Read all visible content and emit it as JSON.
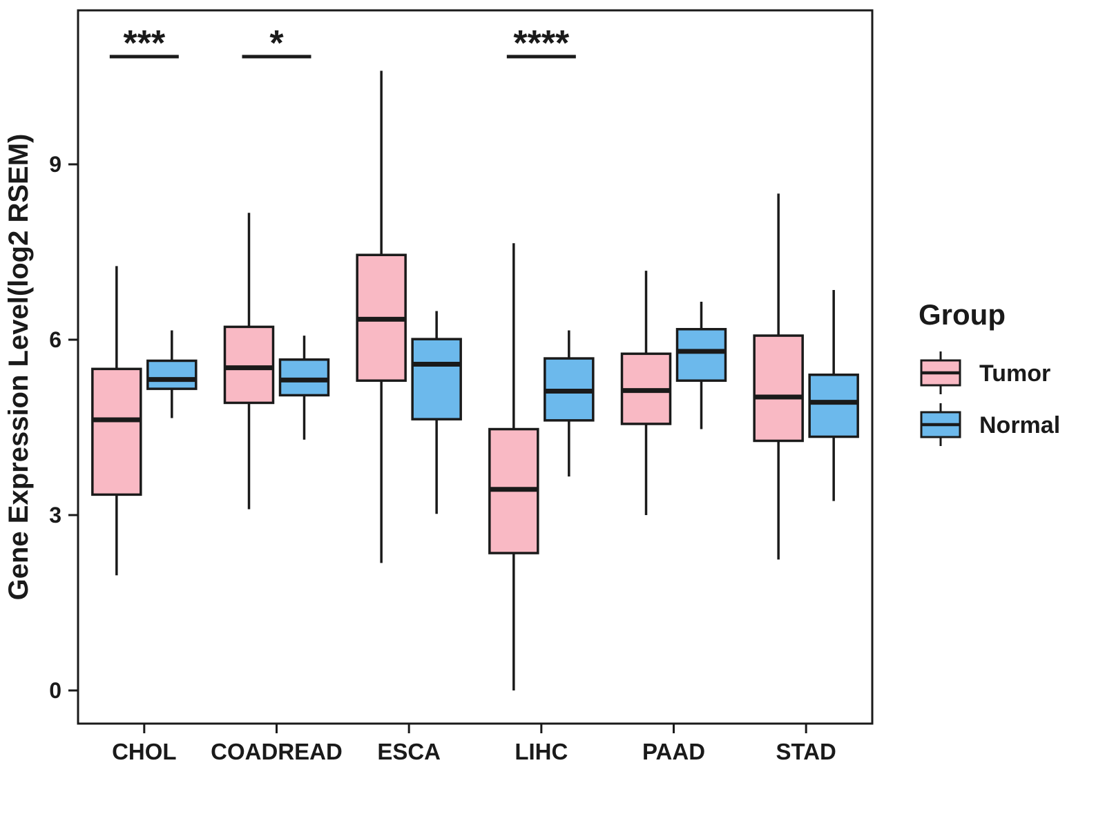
{
  "chart_data": {
    "type": "boxplot",
    "title": "",
    "xlabel": "",
    "ylabel": "Gene Expression Level(log2 RSEM)",
    "ylim": [
      -0.6,
      11.6
    ],
    "yticks": [
      0,
      3,
      6,
      9
    ],
    "grid": false,
    "legend_position": "right",
    "categories": [
      "CHOL",
      "COADREAD",
      "ESCA",
      "LIHC",
      "PAAD",
      "STAD"
    ],
    "series": [
      {
        "name": "Tumor",
        "color": "#F9B9C4",
        "boxes": [
          {
            "lo": 1.97,
            "q1": 3.35,
            "med": 4.63,
            "q3": 5.5,
            "hi": 7.26
          },
          {
            "lo": 3.1,
            "q1": 4.92,
            "med": 5.52,
            "q3": 6.22,
            "hi": 8.17
          },
          {
            "lo": 2.18,
            "q1": 5.3,
            "med": 6.35,
            "q3": 7.45,
            "hi": 10.6
          },
          {
            "lo": 0.0,
            "q1": 2.35,
            "med": 3.44,
            "q3": 4.47,
            "hi": 7.65
          },
          {
            "lo": 3.0,
            "q1": 4.56,
            "med": 5.13,
            "q3": 5.76,
            "hi": 7.18
          },
          {
            "lo": 2.24,
            "q1": 4.27,
            "med": 5.02,
            "q3": 6.07,
            "hi": 8.5
          }
        ]
      },
      {
        "name": "Normal",
        "color": "#6CB9EC",
        "boxes": [
          {
            "lo": 4.66,
            "q1": 5.16,
            "med": 5.32,
            "q3": 5.64,
            "hi": 6.16
          },
          {
            "lo": 4.29,
            "q1": 5.05,
            "med": 5.31,
            "q3": 5.66,
            "hi": 6.07
          },
          {
            "lo": 3.02,
            "q1": 4.64,
            "med": 5.58,
            "q3": 6.01,
            "hi": 6.49
          },
          {
            "lo": 3.66,
            "q1": 4.62,
            "med": 5.12,
            "q3": 5.68,
            "hi": 6.16
          },
          {
            "lo": 4.47,
            "q1": 5.3,
            "med": 5.8,
            "q3": 6.18,
            "hi": 6.65
          },
          {
            "lo": 3.24,
            "q1": 4.34,
            "med": 4.93,
            "q3": 5.4,
            "hi": 6.85
          }
        ]
      }
    ],
    "significance": [
      {
        "category": "CHOL",
        "label": "***"
      },
      {
        "category": "COADREAD",
        "label": "*"
      },
      {
        "category": "LIHC",
        "label": "****"
      }
    ],
    "legend": {
      "title": "Group",
      "entries": [
        {
          "label": "Tumor",
          "color": "#F9B9C4"
        },
        {
          "label": "Normal",
          "color": "#6CB9EC"
        }
      ]
    },
    "style": {
      "box_border_color": "#1a1a1a",
      "panel_border_color": "#1a1a1a",
      "text_color": "#1a1a1a",
      "background": "#ffffff"
    }
  }
}
